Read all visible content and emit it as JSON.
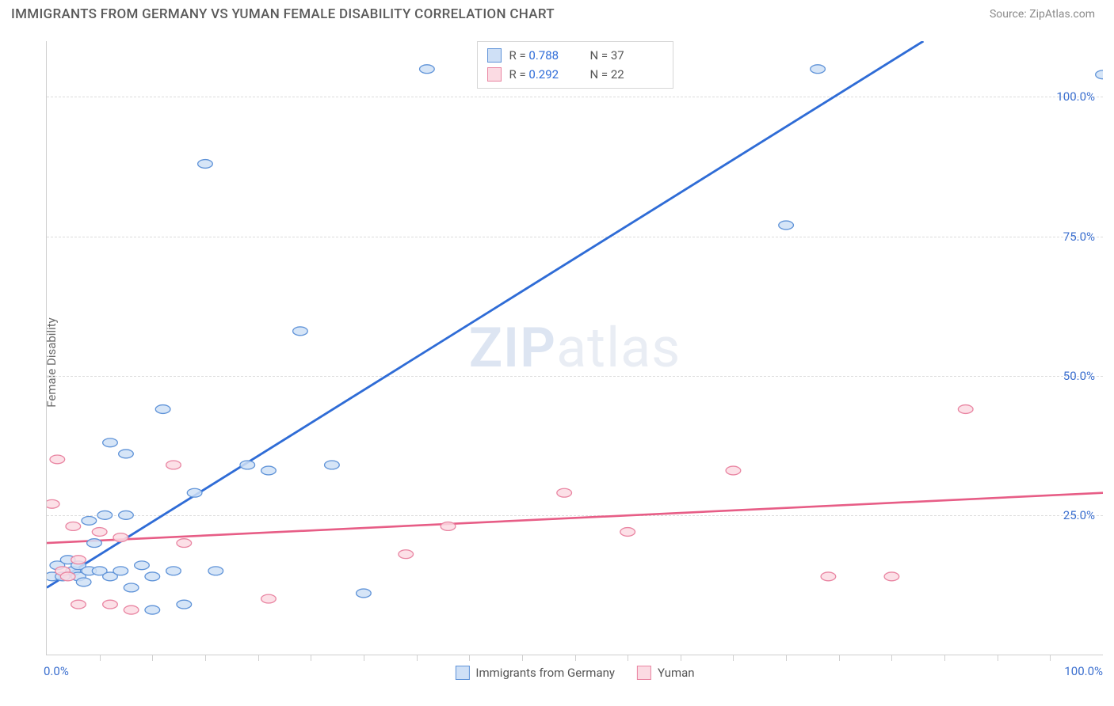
{
  "header": {
    "title": "IMMIGRANTS FROM GERMANY VS YUMAN FEMALE DISABILITY CORRELATION CHART",
    "source": "Source: ZipAtlas.com"
  },
  "chart": {
    "type": "scatter",
    "ylabel": "Female Disability",
    "watermark_bold": "ZIP",
    "watermark_rest": "atlas",
    "background_color": "#ffffff",
    "grid_color": "#dcdcdc",
    "axis_color": "#cfcfcf",
    "xlim": [
      0,
      100
    ],
    "ylim": [
      0,
      110
    ],
    "ytick_values": [
      25,
      50,
      75,
      100
    ],
    "ytick_labels": [
      "25.0%",
      "50.0%",
      "75.0%",
      "100.0%"
    ],
    "xtick_minor_step": 5,
    "xtick_label_left": "0.0%",
    "xtick_label_right": "100.0%",
    "tick_label_color": "#3b6fcf",
    "marker_radius": 7,
    "series": [
      {
        "name": "Immigrants from Germany",
        "fill": "#cfe0f6",
        "stroke": "#5f93d8",
        "marker_opacity": 0.85,
        "r_value": "0.788",
        "n_value": "37",
        "trend": {
          "x1": 0,
          "y1": 12,
          "x2": 83,
          "y2": 110,
          "color": "#2f6cd6",
          "width": 2.2
        },
        "points": [
          {
            "x": 0.5,
            "y": 14
          },
          {
            "x": 1,
            "y": 16
          },
          {
            "x": 1.5,
            "y": 14
          },
          {
            "x": 2,
            "y": 17
          },
          {
            "x": 2.5,
            "y": 15
          },
          {
            "x": 3,
            "y": 14
          },
          {
            "x": 3,
            "y": 16
          },
          {
            "x": 3.5,
            "y": 13
          },
          {
            "x": 4,
            "y": 15
          },
          {
            "x": 4,
            "y": 24
          },
          {
            "x": 4.5,
            "y": 20
          },
          {
            "x": 5,
            "y": 15
          },
          {
            "x": 5.5,
            "y": 25
          },
          {
            "x": 6,
            "y": 14
          },
          {
            "x": 6,
            "y": 38
          },
          {
            "x": 7,
            "y": 15
          },
          {
            "x": 7.5,
            "y": 25
          },
          {
            "x": 7.5,
            "y": 36
          },
          {
            "x": 8,
            "y": 12
          },
          {
            "x": 9,
            "y": 16
          },
          {
            "x": 10,
            "y": 14
          },
          {
            "x": 10,
            "y": 8
          },
          {
            "x": 11,
            "y": 44
          },
          {
            "x": 12,
            "y": 15
          },
          {
            "x": 13,
            "y": 9
          },
          {
            "x": 14,
            "y": 29
          },
          {
            "x": 15,
            "y": 88
          },
          {
            "x": 16,
            "y": 15
          },
          {
            "x": 19,
            "y": 34
          },
          {
            "x": 21,
            "y": 33
          },
          {
            "x": 24,
            "y": 58
          },
          {
            "x": 27,
            "y": 34
          },
          {
            "x": 30,
            "y": 11
          },
          {
            "x": 36,
            "y": 105
          },
          {
            "x": 70,
            "y": 77
          },
          {
            "x": 73,
            "y": 105
          },
          {
            "x": 100,
            "y": 104
          }
        ]
      },
      {
        "name": "Yuman",
        "fill": "#fbdbe3",
        "stroke": "#e985a2",
        "marker_opacity": 0.85,
        "r_value": "0.292",
        "n_value": "22",
        "trend": {
          "x1": 0,
          "y1": 20,
          "x2": 100,
          "y2": 29,
          "color": "#e75d86",
          "width": 2
        },
        "points": [
          {
            "x": 0.5,
            "y": 27
          },
          {
            "x": 1,
            "y": 35
          },
          {
            "x": 1.5,
            "y": 15
          },
          {
            "x": 2,
            "y": 14
          },
          {
            "x": 2.5,
            "y": 23
          },
          {
            "x": 3,
            "y": 17
          },
          {
            "x": 3,
            "y": 9
          },
          {
            "x": 5,
            "y": 22
          },
          {
            "x": 6,
            "y": 9
          },
          {
            "x": 7,
            "y": 21
          },
          {
            "x": 8,
            "y": 8
          },
          {
            "x": 12,
            "y": 34
          },
          {
            "x": 13,
            "y": 20
          },
          {
            "x": 21,
            "y": 10
          },
          {
            "x": 34,
            "y": 18
          },
          {
            "x": 38,
            "y": 23
          },
          {
            "x": 49,
            "y": 29
          },
          {
            "x": 55,
            "y": 22
          },
          {
            "x": 65,
            "y": 33
          },
          {
            "x": 74,
            "y": 14
          },
          {
            "x": 80,
            "y": 14
          },
          {
            "x": 87,
            "y": 44
          }
        ]
      }
    ],
    "legend_top": {
      "r_label": "R =",
      "n_label": "N ="
    }
  }
}
